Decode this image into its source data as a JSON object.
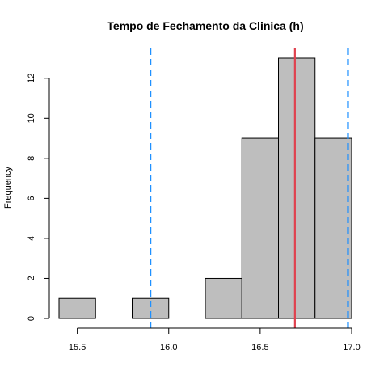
{
  "chart_data": {
    "type": "bar",
    "title": "Tempo de Fechamento da Clinica (h)",
    "xlabel": "",
    "ylabel": "Frequency",
    "bins": [
      {
        "x0": 15.4,
        "x1": 15.6,
        "count": 1
      },
      {
        "x0": 15.6,
        "x1": 15.8,
        "count": 0
      },
      {
        "x0": 15.8,
        "x1": 16.0,
        "count": 1
      },
      {
        "x0": 16.0,
        "x1": 16.2,
        "count": 0
      },
      {
        "x0": 16.2,
        "x1": 16.4,
        "count": 2
      },
      {
        "x0": 16.4,
        "x1": 16.6,
        "count": 9
      },
      {
        "x0": 16.6,
        "x1": 16.8,
        "count": 13
      },
      {
        "x0": 16.8,
        "x1": 17.0,
        "count": 9
      }
    ],
    "xlim": [
      15.4,
      17.0
    ],
    "ylim": [
      0,
      13
    ],
    "xticks": [
      15.5,
      16.0,
      16.5,
      17.0
    ],
    "xtick_labels": [
      "15.5",
      "16.0",
      "16.5",
      "17.0"
    ],
    "yticks": [
      0,
      2,
      4,
      6,
      8,
      10,
      12
    ],
    "ytick_labels": [
      "0",
      "2",
      "4",
      "6",
      "8",
      "10",
      "12"
    ],
    "grid": false,
    "vlines": [
      {
        "x": 15.9,
        "style": "dashed",
        "color": "#1e90ff"
      },
      {
        "x": 16.69,
        "style": "solid",
        "color": "#e0424f"
      },
      {
        "x": 16.98,
        "style": "dashed",
        "color": "#1e90ff"
      }
    ],
    "bar_fill": "#bebebe",
    "bar_stroke": "#000000"
  }
}
